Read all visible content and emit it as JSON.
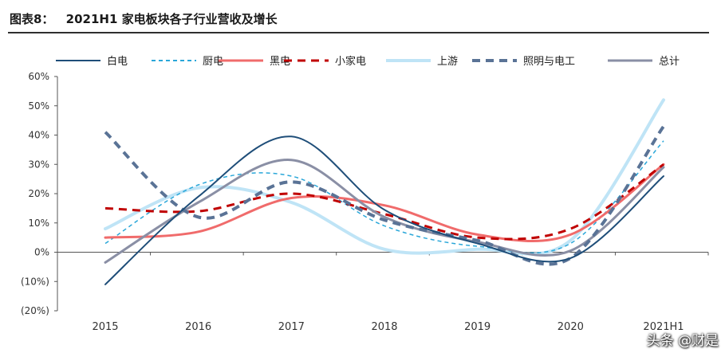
{
  "header": {
    "label": "图表8：",
    "title": "2021H1 家电板块各子行业营收及增长"
  },
  "watermark": "头条 @财是",
  "chart_data": {
    "type": "line",
    "categories": [
      "2015",
      "2016",
      "2017",
      "2018",
      "2019",
      "2020",
      "2021H1"
    ],
    "ylim": [
      -20,
      60
    ],
    "yticks": [
      -20,
      -10,
      0,
      10,
      20,
      30,
      40,
      50,
      60
    ],
    "ytick_labels": [
      "(20%)",
      "(10%)",
      "0%",
      "10%",
      "20%",
      "30%",
      "40%",
      "50%",
      "60%"
    ],
    "legend_position": "top",
    "grid": false,
    "series": [
      {
        "name": "白电",
        "color": "#1f4e79",
        "dash": "solid",
        "width": 2,
        "values": [
          -11,
          19,
          39.5,
          14.5,
          3,
          -2,
          26
        ]
      },
      {
        "name": "厨电",
        "color": "#2aa7d9",
        "dash": "short",
        "width": 1.5,
        "values": [
          3,
          23,
          26,
          9,
          2,
          3,
          38
        ]
      },
      {
        "name": "黑电",
        "color": "#f06b6b",
        "dash": "solid",
        "width": 3,
        "values": [
          5,
          7,
          18.5,
          16,
          6,
          6,
          30
        ]
      },
      {
        "name": "小家电",
        "color": "#c00000",
        "dash": "long",
        "width": 3,
        "values": [
          15,
          14,
          20,
          13,
          5,
          8,
          30
        ]
      },
      {
        "name": "上游",
        "color": "#bfe4f6",
        "dash": "solid",
        "width": 4,
        "values": [
          8,
          22,
          17,
          1,
          1,
          4,
          52
        ]
      },
      {
        "name": "照明与电工",
        "color": "#5a7396",
        "dash": "long",
        "width": 4,
        "values": [
          41,
          12,
          24,
          11,
          4,
          -2,
          43
        ]
      },
      {
        "name": "总计",
        "color": "#8a8fa5",
        "dash": "solid",
        "width": 3,
        "values": [
          -3.5,
          17,
          31.5,
          12,
          3.5,
          0.5,
          29
        ]
      }
    ]
  }
}
